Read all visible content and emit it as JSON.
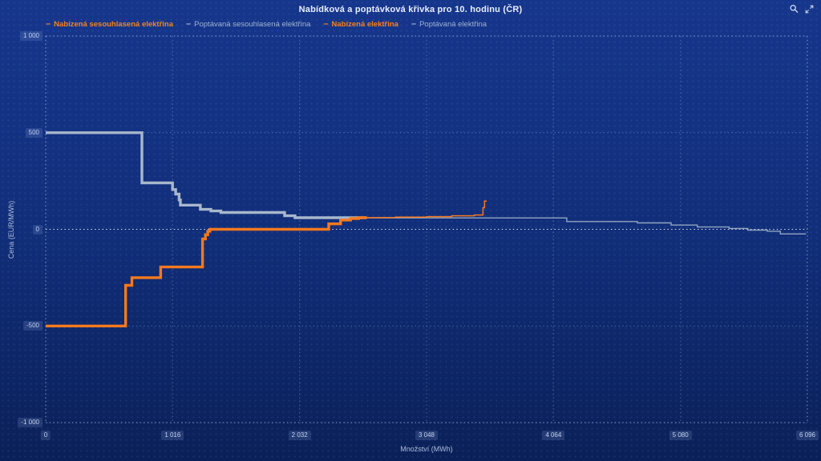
{
  "title": "Nabídková a poptávková křivka pro 10. hodinu (ČR)",
  "toolbar": {
    "icons": [
      {
        "name": "magnifier-icon"
      },
      {
        "name": "expand-arrows-icon"
      }
    ]
  },
  "legend": [
    {
      "label": "Nabízená sesouhlasená elektřina",
      "color": "#f5821e",
      "bold": true
    },
    {
      "label": "Poptávaná sesouhlasená elektřina",
      "color": "#9fb2cf",
      "bold": false
    },
    {
      "label": "Nabízená elektřina",
      "color": "#f5821e",
      "bold": true
    },
    {
      "label": "Poptávaná elektřina",
      "color": "#9fb2cf",
      "bold": false
    }
  ],
  "colors": {
    "supply": "#f5791e",
    "demand": "#a8b7cb",
    "demand_thin": "#92a5c0",
    "background": "#102d77"
  },
  "chart_data": {
    "type": "line",
    "title": "Nabídková a poptávková křivka pro 10. hodinu (ČR)",
    "xlabel": "Množství (MWh)",
    "ylabel": "Cena (EUR/MWh)",
    "xlim": [
      0,
      6096
    ],
    "ylim": [
      -1000,
      1000
    ],
    "xticks": [
      0,
      1016,
      2032,
      3048,
      4064,
      5080,
      6096
    ],
    "xtick_labels": [
      "0",
      "1 016",
      "2 032",
      "3 048",
      "4 064",
      "5 080",
      "6 096"
    ],
    "yticks": [
      1000,
      500,
      0,
      -500,
      -1000
    ],
    "ytick_labels": [
      "1 000",
      "500",
      "0",
      "-500",
      "-1 000"
    ],
    "grid": "dotted",
    "legend_position": "top-left",
    "clearing_point": {
      "quantity_mwh": 2570,
      "price_eur_mwh": 60
    },
    "series": [
      {
        "id": "demand-matched",
        "name": "Poptávaná sesouhlasená elektřina",
        "color": "#a8b7cb",
        "width": 3.4,
        "points": [
          [
            0,
            500
          ],
          [
            770,
            500
          ],
          [
            770,
            240
          ],
          [
            1015,
            240
          ],
          [
            1015,
            206
          ],
          [
            1040,
            206
          ],
          [
            1040,
            182
          ],
          [
            1068,
            182
          ],
          [
            1068,
            152
          ],
          [
            1078,
            152
          ],
          [
            1078,
            125
          ],
          [
            1238,
            125
          ],
          [
            1238,
            103
          ],
          [
            1322,
            103
          ],
          [
            1322,
            95
          ],
          [
            1402,
            95
          ],
          [
            1402,
            87
          ],
          [
            1912,
            87
          ],
          [
            1912,
            70
          ],
          [
            1995,
            70
          ],
          [
            1995,
            60
          ],
          [
            2570,
            60
          ]
        ]
      },
      {
        "id": "demand-total",
        "name": "Poptávaná elektřina",
        "color": "#92a5c0",
        "width": 1.4,
        "points": [
          [
            2570,
            59
          ],
          [
            4170,
            59
          ],
          [
            4170,
            40
          ],
          [
            4735,
            40
          ],
          [
            4735,
            33
          ],
          [
            5005,
            33
          ],
          [
            5005,
            22
          ],
          [
            5215,
            22
          ],
          [
            5215,
            12
          ],
          [
            5470,
            12
          ],
          [
            5470,
            4
          ],
          [
            5620,
            4
          ],
          [
            5620,
            -4
          ],
          [
            5775,
            -4
          ],
          [
            5775,
            -10
          ],
          [
            5880,
            -10
          ],
          [
            5880,
            -24
          ],
          [
            6085,
            -24
          ]
        ]
      },
      {
        "id": "supply-matched",
        "name": "Nabízená sesouhlasená elektřina",
        "color": "#f5791e",
        "width": 3.4,
        "points": [
          [
            0,
            -500
          ],
          [
            640,
            -500
          ],
          [
            640,
            -290
          ],
          [
            690,
            -290
          ],
          [
            690,
            -250
          ],
          [
            920,
            -250
          ],
          [
            920,
            -195
          ],
          [
            1255,
            -195
          ],
          [
            1255,
            -50
          ],
          [
            1278,
            -50
          ],
          [
            1278,
            -28
          ],
          [
            1297,
            -28
          ],
          [
            1297,
            -10
          ],
          [
            1315,
            -10
          ],
          [
            1315,
            0
          ],
          [
            2265,
            0
          ],
          [
            2265,
            28
          ],
          [
            2360,
            28
          ],
          [
            2360,
            48
          ],
          [
            2440,
            48
          ],
          [
            2440,
            56
          ],
          [
            2505,
            56
          ],
          [
            2505,
            60
          ],
          [
            2570,
            60
          ]
        ]
      },
      {
        "id": "supply-total",
        "name": "Nabízená elektřina",
        "color": "#f5791e",
        "width": 1.5,
        "points": [
          [
            2570,
            60
          ],
          [
            2800,
            61
          ],
          [
            2800,
            63
          ],
          [
            3050,
            63
          ],
          [
            3050,
            66
          ],
          [
            3250,
            66
          ],
          [
            3250,
            70
          ],
          [
            3430,
            70
          ],
          [
            3430,
            74
          ],
          [
            3500,
            74
          ],
          [
            3500,
            112
          ],
          [
            3512,
            112
          ],
          [
            3512,
            146
          ],
          [
            3530,
            146
          ]
        ]
      }
    ]
  }
}
